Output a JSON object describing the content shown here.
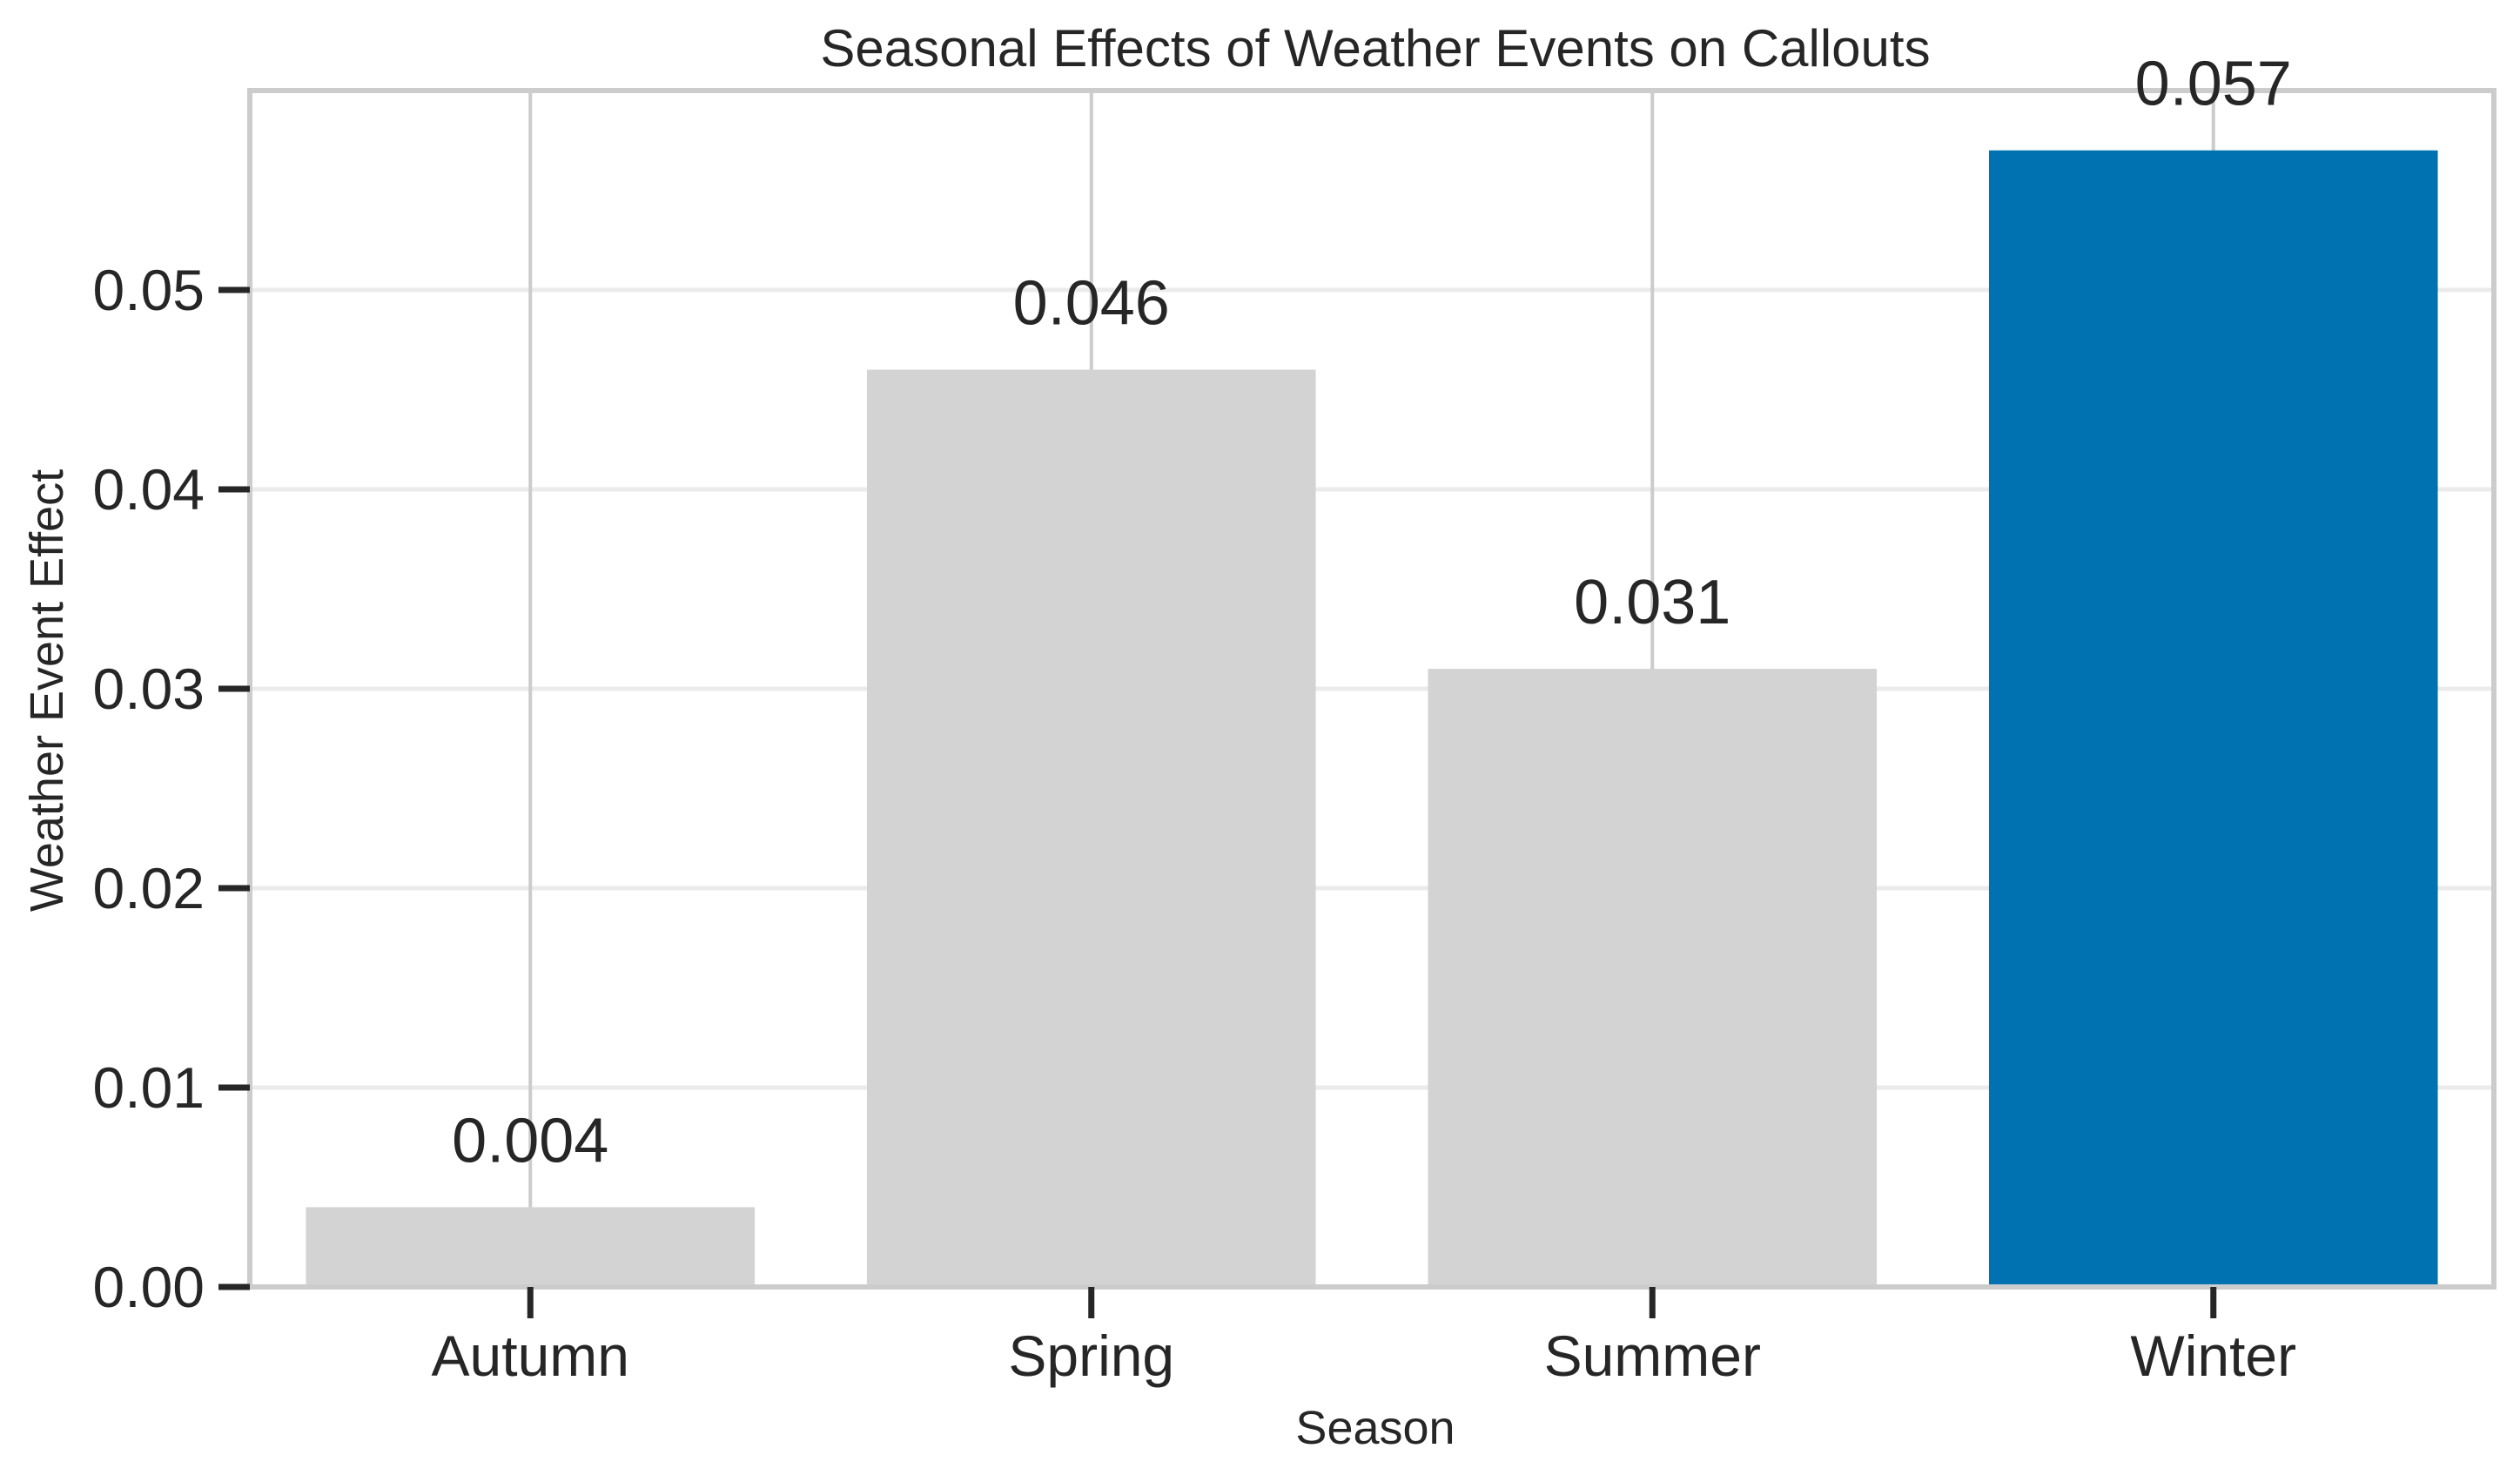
{
  "chart_data": {
    "type": "bar",
    "title": "Seasonal Effects of Weather Events on Callouts",
    "xlabel": "Season",
    "ylabel": "Weather Event Effect",
    "categories": [
      "Autumn",
      "Spring",
      "Summer",
      "Winter"
    ],
    "values": [
      0.004,
      0.046,
      0.031,
      0.057
    ],
    "data_labels": [
      "0.004",
      "0.046",
      "0.031",
      "0.057"
    ],
    "ylim": [
      0,
      0.06
    ],
    "yticks": [
      0.0,
      0.01,
      0.02,
      0.03,
      0.04,
      0.05
    ],
    "ytick_labels": [
      "0.00",
      "0.01",
      "0.02",
      "0.03",
      "0.04",
      "0.05"
    ],
    "grid": true,
    "legend": "none",
    "highlight_category": "Winter",
    "colors": {
      "bar_default": "#d3d3d3",
      "bar_highlight": "#0072b2",
      "grid": "#ebebeb",
      "vertical_grid": "#cccccc",
      "spine": "#cccccc",
      "tick_mark": "#262626",
      "text": "#262626"
    }
  }
}
